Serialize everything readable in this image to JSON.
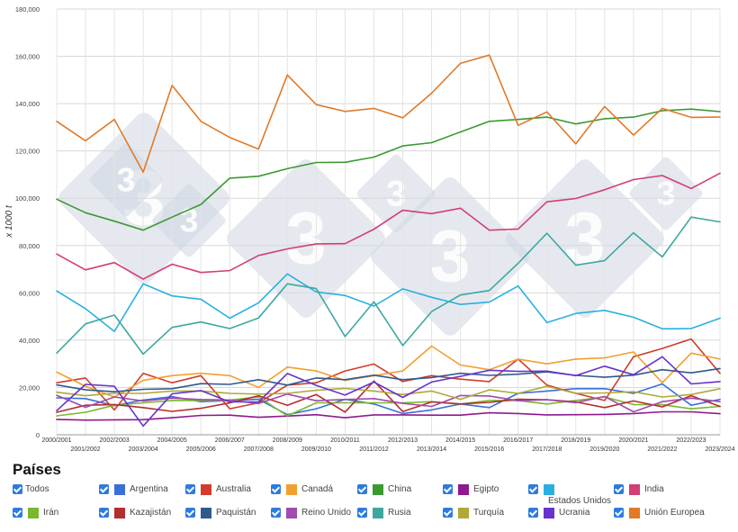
{
  "chart_data": {
    "type": "line",
    "title": "",
    "xlabel": "",
    "ylabel": "x 1000 t",
    "ylim": [
      0,
      180000
    ],
    "yticks": [
      "0",
      "20,000",
      "40,000",
      "60,000",
      "80,000",
      "100,000",
      "120,000",
      "140,000",
      "160,000",
      "180,000"
    ],
    "categories": [
      "2000/2001",
      "2001/2002",
      "2002/2003",
      "2003/2004",
      "2004/2005",
      "2005/2006",
      "2006/2007",
      "2007/2008",
      "2008/2009",
      "2009/2010",
      "2010/2011",
      "2011/2012",
      "2012/2013",
      "2013/2014",
      "2014/2015",
      "2015/2016",
      "2016/2017",
      "2017/2018",
      "2018/2019",
      "2019/2020",
      "2020/2021",
      "2021/2022",
      "2022/2023",
      "2023/2024"
    ],
    "grid": true,
    "legend_position": "bottom",
    "series": [
      {
        "name": "Argentina",
        "color": "#3a6fd8",
        "values": [
          15600,
          15300,
          12300,
          14700,
          16100,
          14000,
          14500,
          15000,
          8500,
          11000,
          15000,
          13000,
          9000,
          10500,
          13000,
          11500,
          17500,
          18500,
          19500,
          19500,
          17500,
          21500,
          12500,
          15000
        ]
      },
      {
        "name": "Australia",
        "color": "#d23c2b",
        "values": [
          22000,
          24000,
          10500,
          26000,
          22000,
          25000,
          11000,
          13500,
          21000,
          22000,
          27000,
          29900,
          22500,
          25000,
          23500,
          22500,
          32000,
          21000,
          17500,
          14500,
          33000,
          36500,
          40500,
          26000
        ]
      },
      {
        "name": "Canadá",
        "color": "#f0a030",
        "values": [
          26500,
          20500,
          16000,
          23000,
          25000,
          26000,
          25000,
          20000,
          28600,
          27000,
          23000,
          25000,
          27000,
          37500,
          29500,
          27500,
          32000,
          30000,
          32000,
          32500,
          35000,
          22000,
          34500,
          32000
        ]
      },
      {
        "name": "China",
        "color": "#3a9a30",
        "values": [
          99600,
          93900,
          90300,
          86500,
          92000,
          97400,
          108500,
          109300,
          112500,
          115100,
          115200,
          117400,
          122100,
          123500,
          128000,
          132500,
          133300,
          134300,
          131400,
          133600,
          134300,
          137000,
          137700,
          136600
        ]
      },
      {
        "name": "Egipto",
        "color": "#8e1a8e",
        "values": [
          6500,
          6200,
          6300,
          6400,
          7200,
          8200,
          8300,
          7400,
          7900,
          8500,
          7200,
          8400,
          8400,
          8300,
          8300,
          9300,
          9000,
          8400,
          8500,
          8600,
          9000,
          9700,
          9700,
          8900
        ]
      },
      {
        "name": "Estados Unidos",
        "color": "#2ab0e0",
        "values": [
          60800,
          53300,
          43700,
          63800,
          58700,
          57300,
          49300,
          55800,
          68000,
          60400,
          58900,
          54400,
          61700,
          58100,
          55100,
          56100,
          62900,
          47400,
          51300,
          52600,
          49700,
          44800,
          44900,
          49300
        ]
      },
      {
        "name": "India",
        "color": "#d23e76",
        "values": [
          76400,
          69700,
          72800,
          65800,
          72100,
          68600,
          69400,
          75800,
          78600,
          80700,
          80800,
          86900,
          94900,
          93500,
          95800,
          86500,
          87000,
          98500,
          99900,
          103600,
          107900,
          109600,
          104100,
          110600
        ]
      },
      {
        "name": "Irán",
        "color": "#7ab82c",
        "values": [
          8000,
          9500,
          12500,
          13500,
          14500,
          14500,
          14700,
          16000,
          8000,
          13500,
          13500,
          13500,
          13500,
          14000,
          13000,
          14500,
          14500,
          13000,
          14500,
          16000,
          12800,
          12700,
          11000,
          12000
        ]
      },
      {
        "name": "Kazajistán",
        "color": "#b52d2d",
        "values": [
          9500,
          12500,
          12800,
          11500,
          9900,
          11200,
          13500,
          16500,
          12500,
          17000,
          9600,
          22700,
          9800,
          13900,
          13000,
          13700,
          15000,
          14800,
          13900,
          11500,
          14300,
          11800,
          16500,
          12000
        ]
      },
      {
        "name": "Paquistán",
        "color": "#2f5a8e",
        "values": [
          21100,
          19000,
          18200,
          19200,
          19500,
          21600,
          21300,
          23300,
          21000,
          24000,
          23300,
          25200,
          23300,
          24200,
          26000,
          25100,
          25600,
          26600,
          25100,
          24300,
          25200,
          27500,
          26200,
          28000
        ]
      },
      {
        "name": "Reino Unido",
        "color": "#a04bb0",
        "values": [
          16700,
          11600,
          16000,
          14300,
          15500,
          14900,
          14700,
          13200,
          17200,
          14400,
          14900,
          15300,
          13300,
          12000,
          16600,
          16400,
          14400,
          14800,
          13600,
          16200,
          9700,
          14000,
          15500,
          14000
        ]
      },
      {
        "name": "Rusia",
        "color": "#3ea8a0",
        "values": [
          34500,
          46900,
          50600,
          34100,
          45400,
          47700,
          44900,
          49400,
          63800,
          61800,
          41500,
          56200,
          37700,
          52100,
          59100,
          61000,
          72500,
          85200,
          71700,
          73600,
          85400,
          75200,
          92000,
          90000
        ]
      },
      {
        "name": "Turquía",
        "color": "#b0a838",
        "values": [
          18000,
          16500,
          17500,
          17500,
          18500,
          18500,
          17500,
          17200,
          17500,
          18800,
          19600,
          18500,
          17000,
          18500,
          15000,
          19000,
          17500,
          20500,
          17500,
          17700,
          18200,
          16000,
          17000,
          19500
        ]
      },
      {
        "name": "Ucrania",
        "color": "#6633cc",
        "values": [
          10200,
          21300,
          20500,
          3700,
          17300,
          18700,
          13900,
          13900,
          25900,
          20900,
          16800,
          22300,
          15800,
          22300,
          24700,
          27300,
          26800,
          26900,
          25000,
          29000,
          25400,
          33000,
          21500,
          22500
        ]
      },
      {
        "name": "Unión Europea",
        "color": "#e07a28",
        "values": [
          132500,
          124300,
          133300,
          111000,
          147700,
          132500,
          125700,
          120800,
          152100,
          139600,
          136700,
          138000,
          134000,
          144400,
          157000,
          160500,
          130800,
          136500,
          123000,
          138800,
          126700,
          138000,
          134200,
          134300
        ]
      }
    ]
  },
  "legend": {
    "title": "Países",
    "items": [
      {
        "label": "Todos",
        "swatch": ""
      },
      {
        "label": "Argentina",
        "swatch": "#3a6fd8"
      },
      {
        "label": "Australia",
        "swatch": "#d23c2b"
      },
      {
        "label": "Canadá",
        "swatch": "#f0a030"
      },
      {
        "label": "China",
        "swatch": "#3a9a30"
      },
      {
        "label": "Egipto",
        "swatch": "#8e1a8e"
      },
      {
        "label": "Estados Unidos",
        "swatch": "#2ab0e0"
      },
      {
        "label": "India",
        "swatch": "#d23e76"
      },
      {
        "label": "Irán",
        "swatch": "#7ab82c"
      },
      {
        "label": "Kazajistán",
        "swatch": "#b52d2d"
      },
      {
        "label": "Paquistán",
        "swatch": "#2f5a8e"
      },
      {
        "label": "Reino Unido",
        "swatch": "#a04bb0"
      },
      {
        "label": "Rusia",
        "swatch": "#3ea8a0"
      },
      {
        "label": "Turquía",
        "swatch": "#b0a838"
      },
      {
        "label": "Ucrania",
        "swatch": "#6633cc"
      },
      {
        "label": "Unión Europea",
        "swatch": "#e07a28"
      }
    ]
  },
  "watermark": {
    "text": "3"
  }
}
